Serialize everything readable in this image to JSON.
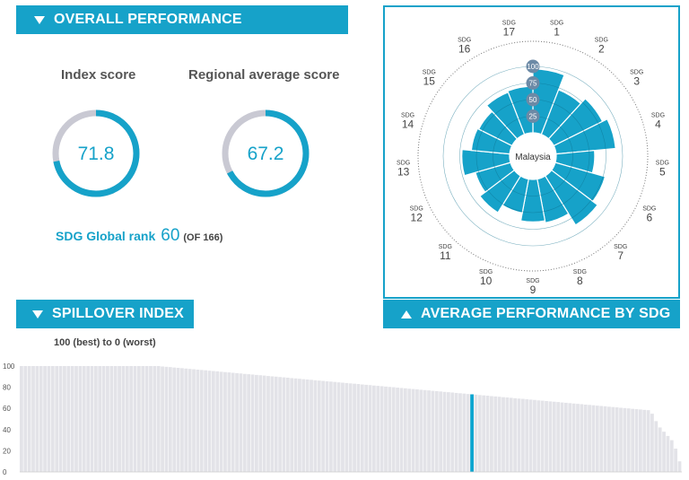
{
  "overall": {
    "title": "OVERALL PERFORMANCE",
    "index_label": "Index score",
    "index_value": "71.8",
    "index_score": 71.8,
    "regional_label": "Regional average score",
    "regional_value": "67.2",
    "regional_score": 67.2,
    "rank_label": "SDG Global rank",
    "rank_value": "60",
    "rank_of": "(OF 166)"
  },
  "spillover": {
    "title": "SPILLOVER INDEX",
    "range_text": "100 (best) to 0 (worst)"
  },
  "sdg_panel": {
    "title": "AVERAGE PERFORMANCE BY SDG",
    "center_label": "Malaysia"
  },
  "colors": {
    "accent": "#16a2c9",
    "ring_grey": "#c9c9d3",
    "bar_grey": "#e3e3e8",
    "highlight": "#0aa5cf"
  },
  "chart_data": [
    {
      "type": "radar",
      "categories": [
        "SDG 1",
        "SDG 2",
        "SDG 3",
        "SDG 4",
        "SDG 5",
        "SDG 6",
        "SDG 7",
        "SDG 8",
        "SDG 9",
        "SDG 10",
        "SDG 11",
        "SDG 12",
        "SDG 13",
        "SDG 14",
        "SDG 15",
        "SDG 16",
        "SDG 17"
      ],
      "sdg_prefix": "SDG",
      "sdg_numbers": [
        "1",
        "2",
        "3",
        "4",
        "5",
        "6",
        "7",
        "8",
        "9",
        "10",
        "11",
        "12",
        "13",
        "14",
        "15",
        "16",
        "17"
      ],
      "values": [
        96,
        72,
        82,
        90,
        58,
        78,
        87,
        67,
        64,
        52,
        65,
        55,
        72,
        58,
        56,
        68,
        70
      ],
      "ring_ticks": [
        "25",
        "50",
        "75",
        "100"
      ],
      "ylim": [
        0,
        100
      ]
    },
    {
      "type": "bar",
      "y_ticks": [
        "0",
        "20",
        "40",
        "60",
        "80",
        "100"
      ],
      "ylim": [
        0,
        100
      ],
      "highlight_index": 115,
      "values": [
        100,
        100,
        100,
        100,
        100,
        100,
        100,
        100,
        100,
        100,
        100,
        100,
        100,
        100,
        100,
        100,
        100,
        100,
        100,
        100,
        100,
        100,
        100,
        100,
        100,
        100,
        100,
        100,
        100,
        100,
        100,
        100,
        100,
        100,
        100,
        100,
        99.6,
        99.3,
        99,
        98.6,
        98.3,
        98,
        97.6,
        97.3,
        97,
        96.6,
        96.3,
        96,
        95.6,
        95.3,
        95,
        94.6,
        94.3,
        94,
        93.6,
        93.3,
        93,
        92.6,
        92.3,
        92,
        91.6,
        91.3,
        91,
        90.6,
        90.3,
        90,
        89.6,
        89.3,
        89,
        88.6,
        88.3,
        88,
        87.6,
        87.3,
        87,
        86.6,
        86.3,
        86,
        85.6,
        85.3,
        85,
        84.6,
        84.3,
        84,
        83.6,
        83.3,
        83,
        82.6,
        82.3,
        82,
        81.6,
        81.3,
        81,
        80.6,
        80.3,
        80,
        79.6,
        79.3,
        79,
        78.6,
        78.3,
        78,
        77.6,
        77.3,
        77,
        76.6,
        76.3,
        76,
        75.6,
        75.3,
        75,
        74.6,
        74.3,
        74,
        73.6,
        73.3,
        73,
        72.6,
        72.3,
        72,
        71.6,
        71.3,
        71,
        70.6,
        70.3,
        70,
        69.6,
        69.3,
        69,
        68.6,
        68.3,
        68,
        67.6,
        67.3,
        67,
        66.6,
        66.3,
        66,
        65.6,
        65.3,
        65,
        64.6,
        64.3,
        64,
        63.6,
        63.3,
        63,
        62.6,
        62.3,
        62,
        61.6,
        61.3,
        61,
        60.6,
        60.3,
        60,
        59.6,
        59.3,
        59,
        58.6,
        58.3,
        55,
        48,
        42,
        38,
        34,
        30,
        22,
        10
      ]
    }
  ]
}
